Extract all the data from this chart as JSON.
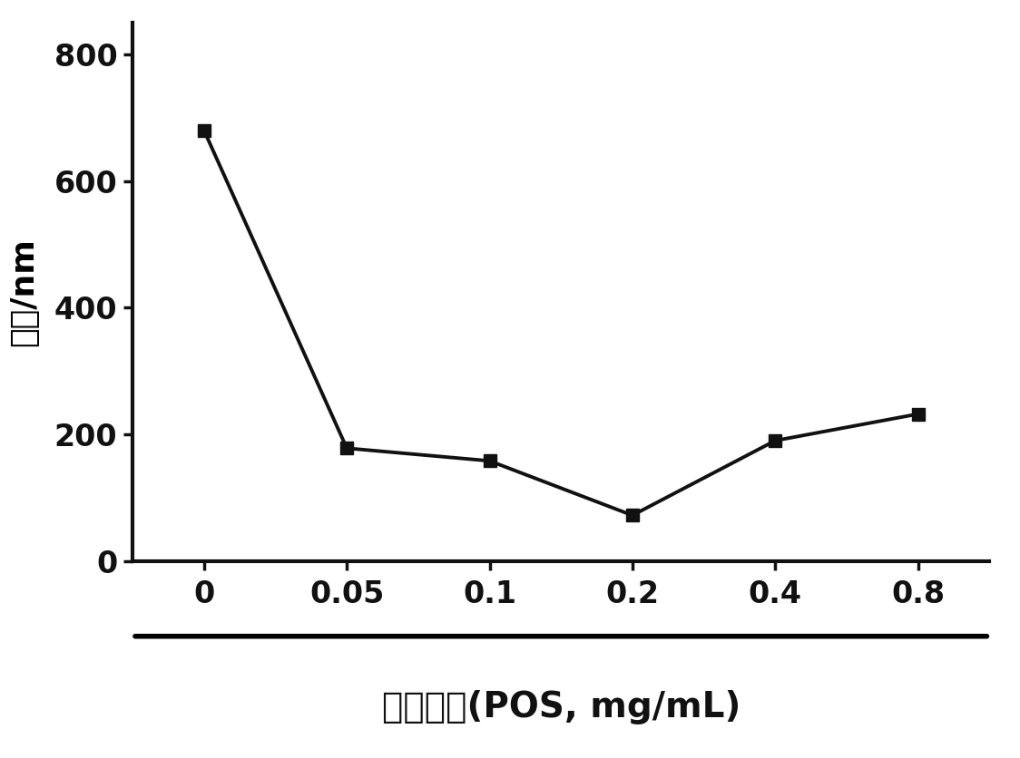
{
  "x_indices": [
    0,
    1,
    2,
    3,
    4,
    5
  ],
  "y_values": [
    680,
    178,
    158,
    72,
    190,
    232
  ],
  "x_tick_labels": [
    "0",
    "0.05",
    "0.1",
    "0.2",
    "0.4",
    "0.8"
  ],
  "y_ticks": [
    0,
    200,
    400,
    600,
    800
  ],
  "y_tick_labels": [
    "0",
    "200",
    "400",
    "600",
    "800"
  ],
  "ylim": [
    0,
    850
  ],
  "xlim": [
    -0.5,
    5.5
  ],
  "ylabel": "粒径/nm",
  "xlabel": "茕苓寄糖(POS, mg/mL)",
  "line_color": "#111111",
  "marker": "s",
  "marker_size": 10,
  "line_width": 2.8,
  "background_color": "#ffffff",
  "tick_fontsize": 24,
  "ylabel_fontsize": 26,
  "xlabel_fontsize": 28
}
